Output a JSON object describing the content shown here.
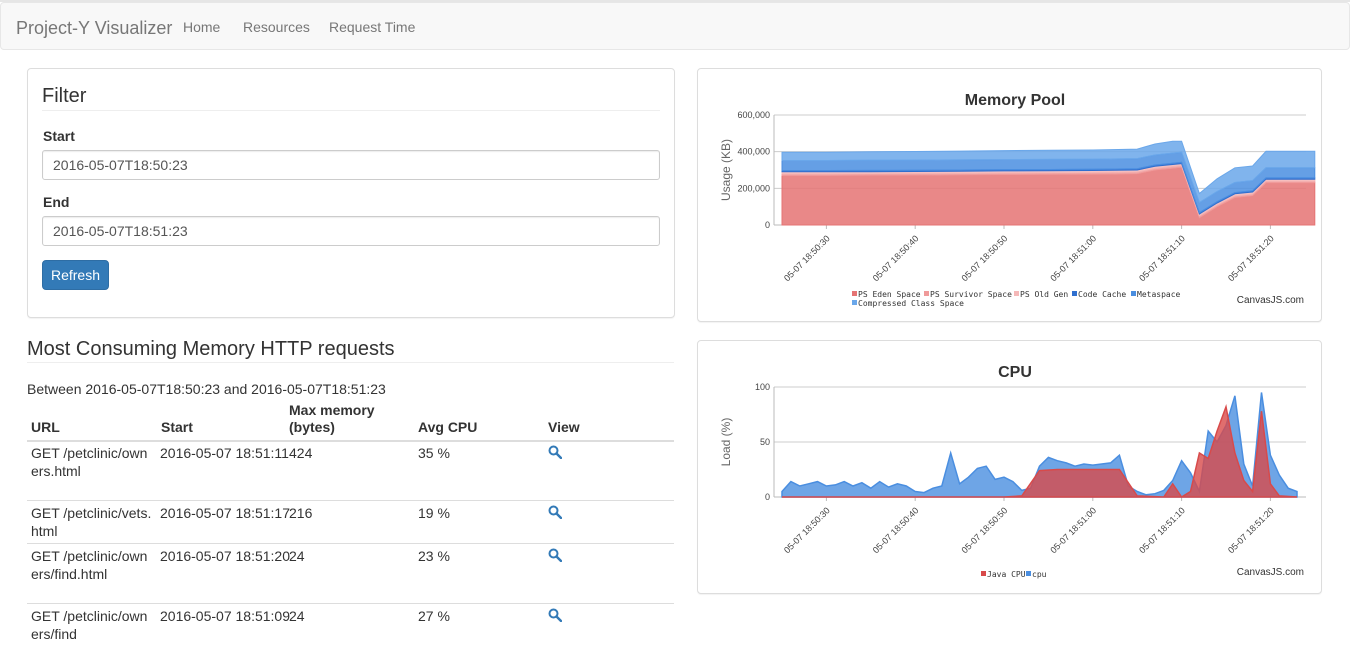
{
  "navbar": {
    "brand": "Project-Y Visualizer",
    "links": [
      "Home",
      "Resources",
      "Request Time"
    ]
  },
  "filter": {
    "title": "Filter",
    "start_label": "Start",
    "start_value": "2016-05-07T18:50:23",
    "end_label": "End",
    "end_value": "2016-05-07T18:51:23",
    "refresh_label": "Refresh"
  },
  "requests": {
    "title": "Most Consuming Memory HTTP requests",
    "between": "Between 2016-05-07T18:50:23 and 2016-05-07T18:51:23",
    "headers": [
      "URL",
      "Start",
      "Max memory (bytes)",
      "Avg CPU",
      "View"
    ],
    "rows": [
      {
        "url": "GET /petclinic/owners.html",
        "start": "2016-05-07 18:51:11",
        "max_memory": "424",
        "avg_cpu": "35 %",
        "view_icon": "search-icon"
      },
      {
        "url": "GET /petclinic/vets.html",
        "start": "2016-05-07 18:51:17",
        "max_memory": "216",
        "avg_cpu": "19 %",
        "view_icon": "search-icon"
      },
      {
        "url": "GET /petclinic/owners/find.html",
        "start": "2016-05-07 18:51:20",
        "max_memory": "24",
        "avg_cpu": "23 %",
        "view_icon": "search-icon"
      },
      {
        "url": "GET /petclinic/owners/find",
        "start": "2016-05-07 18:51:09",
        "max_memory": "24",
        "avg_cpu": "27 %",
        "view_icon": "search-icon"
      }
    ]
  },
  "chart_data": [
    {
      "type": "area",
      "stacked": true,
      "title": "Memory Pool",
      "ylabel": "Usage (KB)",
      "ylim": [
        0,
        600000
      ],
      "yticks": [
        "0",
        "200,000",
        "400,000",
        "600,000"
      ],
      "xticks": [
        "05-07 18:50:30",
        "05-07 18:50:40",
        "05-07 18:50:50",
        "05-07 18:51:00",
        "05-07 18:51:10",
        "05-07 18:51:20"
      ],
      "x_seconds": [
        0,
        5,
        10,
        15,
        20,
        25,
        30,
        35,
        40,
        42,
        44,
        45,
        47,
        49,
        51,
        53,
        54.5,
        56,
        58,
        60
      ],
      "series": [
        {
          "name": "PS Eden Space",
          "color": "#e57373",
          "values": [
            270000,
            270000,
            271000,
            272000,
            273000,
            275000,
            276000,
            277000,
            280000,
            300000,
            310000,
            315000,
            40000,
            100000,
            150000,
            160000,
            230000,
            230000,
            230000,
            230000
          ]
        },
        {
          "name": "PS Survivor Space",
          "color": "#f09a9a",
          "values": [
            10000,
            10000,
            10000,
            10000,
            10000,
            10000,
            10000,
            10000,
            10000,
            10000,
            10000,
            10000,
            10000,
            10000,
            10000,
            10000,
            10000,
            10000,
            10000,
            10000
          ]
        },
        {
          "name": "PS Old Gen",
          "color": "#f5b8b8",
          "values": [
            10000,
            10000,
            10000,
            10000,
            10000,
            10000,
            10000,
            10000,
            10000,
            10000,
            10000,
            10000,
            10000,
            10000,
            10000,
            10000,
            10000,
            10000,
            10000,
            10000
          ]
        },
        {
          "name": "Code Cache",
          "color": "#2f6fcf",
          "values": [
            7000,
            7000,
            7000,
            7000,
            7000,
            7000,
            7000,
            7000,
            7000,
            7000,
            7000,
            7000,
            7000,
            7000,
            7000,
            7000,
            7000,
            7000,
            7000,
            7000
          ]
        },
        {
          "name": "Metaspace",
          "color": "#4a8ee0",
          "values": [
            55000,
            55000,
            55000,
            55000,
            55000,
            55000,
            55000,
            55000,
            55000,
            55000,
            55000,
            55000,
            55000,
            55000,
            55000,
            55000,
            55000,
            55000,
            55000,
            55000
          ]
        },
        {
          "name": "Compressed Class Space",
          "color": "#6aa7ea",
          "values": [
            45000,
            45000,
            46000,
            47000,
            48000,
            49000,
            50000,
            50000,
            52000,
            60000,
            65000,
            60000,
            50000,
            70000,
            80000,
            80000,
            90000,
            90000,
            90000,
            90000
          ]
        }
      ],
      "legend": "bottom",
      "credit": "CanvasJS.com"
    },
    {
      "type": "area",
      "stacked": false,
      "title": "CPU",
      "ylabel": "Load (%)",
      "ylim": [
        0,
        100
      ],
      "yticks": [
        "0",
        "50",
        "100"
      ],
      "xticks": [
        "05-07 18:50:30",
        "05-07 18:50:40",
        "05-07 18:50:50",
        "05-07 18:51:00",
        "05-07 18:51:10",
        "05-07 18:51:20"
      ],
      "series": [
        {
          "name": "cpu",
          "color": "#4a8ee0",
          "x": [
            0,
            1,
            2,
            3,
            4,
            5,
            6,
            7,
            8,
            9,
            10,
            11,
            12,
            13,
            14,
            15,
            16,
            17,
            18,
            19,
            20,
            21,
            22,
            23,
            24,
            25,
            26,
            27,
            28,
            29,
            30,
            31,
            32,
            33,
            34,
            35,
            36,
            37,
            38,
            39,
            40,
            41,
            42,
            43,
            44,
            45,
            46,
            47,
            48,
            49,
            50,
            51,
            52,
            53,
            54,
            55,
            56,
            57,
            58
          ],
          "values": [
            5,
            14,
            10,
            12,
            14,
            10,
            11,
            14,
            10,
            13,
            8,
            14,
            9,
            12,
            10,
            5,
            4,
            8,
            10,
            40,
            12,
            18,
            26,
            28,
            16,
            18,
            14,
            6,
            8,
            28,
            36,
            33,
            31,
            28,
            30,
            29,
            30,
            31,
            38,
            10,
            5,
            2,
            3,
            6,
            15,
            33,
            22,
            5,
            60,
            50,
            65,
            92,
            30,
            10,
            95,
            38,
            20,
            8,
            5
          ]
        },
        {
          "name": "Java CPU",
          "color": "#d84a4a",
          "x": [
            0,
            5,
            10,
            15,
            20,
            25,
            27,
            29,
            31,
            33,
            35,
            37,
            38,
            40,
            43,
            44,
            45,
            46,
            47,
            48,
            49,
            50,
            51,
            52,
            53,
            54,
            55,
            56,
            58
          ],
          "values": [
            0,
            0,
            0,
            0,
            0,
            0,
            1,
            24,
            25,
            25,
            25,
            25,
            25,
            1,
            0,
            12,
            0,
            5,
            40,
            35,
            60,
            82,
            40,
            15,
            5,
            78,
            12,
            1,
            0
          ]
        }
      ],
      "legend": "bottom",
      "credit": "CanvasJS.com"
    }
  ]
}
